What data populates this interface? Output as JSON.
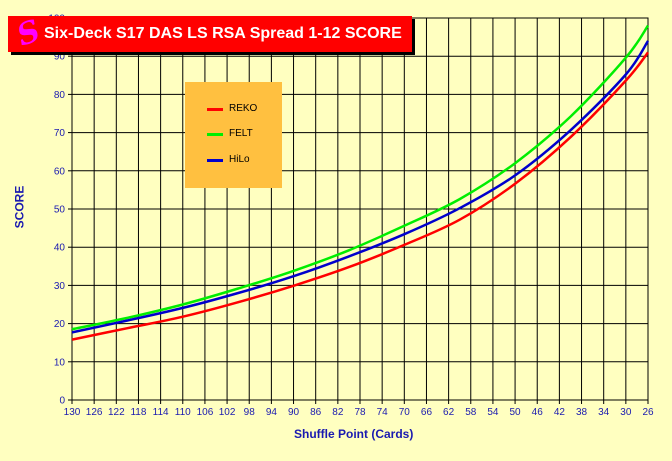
{
  "chart_data": {
    "type": "line",
    "title": "Six-Deck S17 DAS LS RSA Spread 1-12 SCORE",
    "xlabel": "Shuffle Point (Cards)",
    "ylabel": "SCORE",
    "x_ticks": [
      130,
      126,
      122,
      118,
      114,
      110,
      106,
      102,
      98,
      94,
      90,
      86,
      82,
      78,
      74,
      70,
      66,
      62,
      58,
      54,
      50,
      46,
      42,
      38,
      34,
      30,
      26
    ],
    "y_ticks": [
      0,
      10,
      20,
      30,
      40,
      50,
      60,
      70,
      80,
      90,
      100
    ],
    "xlim": [
      130,
      26
    ],
    "ylim": [
      0,
      100
    ],
    "grid": true,
    "legend_position": "upper-left inside plot",
    "x": [
      130,
      120,
      110,
      100,
      90,
      80,
      70,
      60,
      50,
      40,
      30,
      26
    ],
    "series": [
      {
        "name": "REKO",
        "color": "#FF0000",
        "values": [
          15.8,
          18.8,
          21.8,
          25.6,
          29.9,
          34.8,
          40.6,
          47.2,
          56.6,
          68.8,
          83.6,
          91
        ]
      },
      {
        "name": "FELT",
        "color": "#00EE00",
        "values": [
          18.5,
          21.5,
          25.0,
          29.2,
          33.8,
          39.2,
          45.6,
          52.6,
          62.0,
          74.2,
          89.6,
          98
        ]
      },
      {
        "name": "HiLo",
        "color": "#0000CC",
        "values": [
          17.7,
          20.8,
          24.1,
          28.0,
          32.4,
          37.6,
          43.4,
          50.2,
          58.8,
          70.6,
          85.2,
          94
        ]
      }
    ]
  },
  "title_logo": "S",
  "colors": {
    "background": "#FFFFC0",
    "title_bg": "#FF0000",
    "legend_bg": "#FFC040",
    "axis_text": "#1A1AB0",
    "grid": "#000000"
  }
}
